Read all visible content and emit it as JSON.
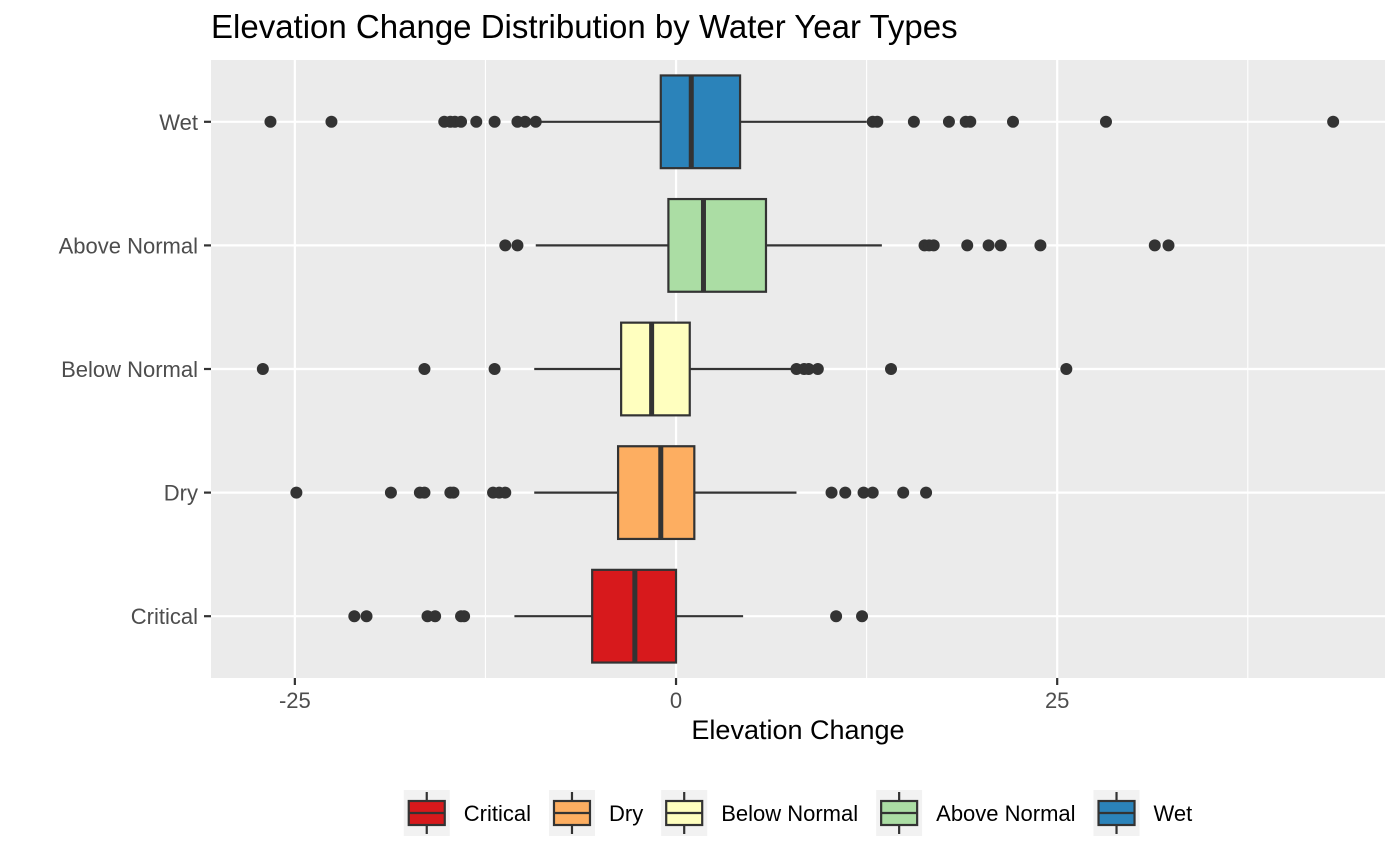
{
  "chart_data": {
    "type": "boxplot",
    "orientation": "horizontal",
    "title": "Elevation Change Distribution by Water Year Types",
    "xlabel": "Elevation Change",
    "ylabel": "",
    "xlim": [
      -30.5,
      46.5
    ],
    "x_ticks": [
      -25,
      0,
      25
    ],
    "grid": true,
    "legend_position": "bottom",
    "categories": [
      "Critical",
      "Dry",
      "Below Normal",
      "Above Normal",
      "Wet"
    ],
    "series": [
      {
        "name": "Critical",
        "color": "#d7191c",
        "whisker_low": -10.6,
        "q1": -5.5,
        "median": -2.7,
        "q3": 0.0,
        "whisker_high": 4.4,
        "outliers": [
          -21.1,
          -20.3,
          -16.3,
          -15.8,
          -14.1,
          -13.9,
          10.5,
          12.2
        ]
      },
      {
        "name": "Dry",
        "color": "#fdae61",
        "whisker_low": -9.3,
        "q1": -3.8,
        "median": -1.0,
        "q3": 1.2,
        "whisker_high": 7.9,
        "outliers": [
          -24.9,
          -18.7,
          -16.8,
          -16.5,
          -14.8,
          -14.6,
          -12.0,
          -11.6,
          -11.2,
          10.2,
          11.1,
          12.3,
          12.9,
          14.9,
          16.4
        ]
      },
      {
        "name": "Below Normal",
        "color": "#ffffbf",
        "whisker_low": -9.3,
        "q1": -3.6,
        "median": -1.6,
        "q3": 0.9,
        "whisker_high": 8.0,
        "outliers": [
          -27.1,
          -16.5,
          -11.9,
          7.9,
          8.4,
          8.7,
          9.3,
          14.1,
          25.6
        ]
      },
      {
        "name": "Above Normal",
        "color": "#abdda4",
        "whisker_low": -9.2,
        "q1": -0.5,
        "median": 1.8,
        "q3": 5.9,
        "whisker_high": 13.5,
        "outliers": [
          -11.2,
          -10.4,
          16.3,
          16.6,
          16.9,
          19.1,
          20.5,
          21.3,
          23.9,
          31.4,
          32.3
        ]
      },
      {
        "name": "Wet",
        "color": "#2b83ba",
        "whisker_low": -9.2,
        "q1": -1.0,
        "median": 1.0,
        "q3": 4.2,
        "whisker_high": 12.5,
        "outliers": [
          -26.6,
          -22.6,
          -15.2,
          -14.8,
          -14.5,
          -14.1,
          -13.1,
          -11.9,
          -10.4,
          -9.9,
          -9.2,
          12.9,
          13.2,
          15.6,
          17.9,
          19.0,
          19.3,
          22.1,
          28.2,
          43.1
        ]
      }
    ]
  }
}
